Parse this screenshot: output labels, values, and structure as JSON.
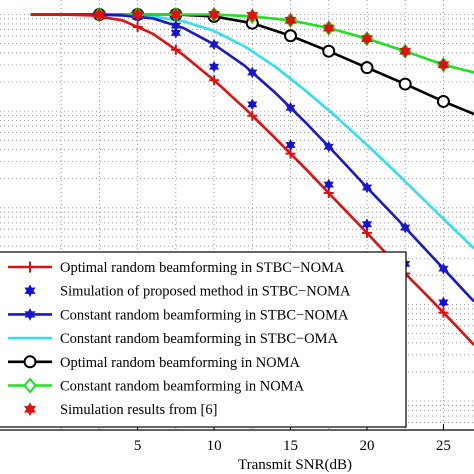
{
  "chart_data": {
    "type": "line",
    "xlabel": "Transmit SNR(dB)",
    "ylabel": "",
    "xlim": [
      -4,
      27
    ],
    "ylim": [
      -4.3,
      0.15
    ],
    "y_scale": "log",
    "grid": true,
    "x_ticks": [
      5,
      10,
      15,
      20,
      25
    ],
    "legend_position": "bottom-left",
    "series": [
      {
        "name": "Optimal random beamforming in STBC−NOMA",
        "color": "#e01010",
        "marker": "plus",
        "x": [
          -2,
          0,
          2,
          4,
          6,
          8,
          10,
          12,
          14,
          16,
          18,
          20,
          22,
          24,
          26,
          27
        ],
        "y": [
          0,
          0,
          -0.01,
          -0.06,
          -0.2,
          -0.42,
          -0.68,
          -0.97,
          -1.28,
          -1.6,
          -1.93,
          -2.26,
          -2.6,
          -2.92,
          -3.25,
          -3.42
        ]
      },
      {
        "name": "Simulation of proposed method in STBC−NOMA",
        "color": "#1010d8",
        "marker": "star",
        "x": [
          2.5,
          5,
          7.5,
          10,
          12.5,
          15,
          17.5,
          20,
          22.5,
          25
        ],
        "y": [
          0,
          -0.02,
          -0.19,
          -0.54,
          -0.93,
          -1.35,
          -1.76,
          -2.17,
          -2.58,
          -2.98
        ]
      },
      {
        "name": "Constant random beamforming in STBC−NOMA",
        "color": "#1818cc",
        "marker": "star",
        "x": [
          -2,
          0,
          2,
          4,
          6,
          8,
          10,
          12,
          14,
          16,
          18,
          20,
          22,
          24,
          26,
          27
        ],
        "y": [
          0,
          0,
          0,
          -0.01,
          -0.04,
          -0.14,
          -0.31,
          -0.53,
          -0.81,
          -1.12,
          -1.45,
          -1.79,
          -2.12,
          -2.46,
          -2.8,
          -2.97
        ]
      },
      {
        "name": "Constant random beamforming in STBC−OMA",
        "color": "#30e0f0",
        "marker": "none",
        "x": [
          -2,
          0,
          2,
          4,
          6,
          8,
          10,
          12,
          14,
          16,
          18,
          20,
          22,
          24,
          26,
          27
        ],
        "y": [
          0,
          0,
          0,
          0,
          -0.02,
          -0.07,
          -0.17,
          -0.33,
          -0.54,
          -0.79,
          -1.06,
          -1.35,
          -1.65,
          -1.96,
          -2.27,
          -2.42
        ]
      },
      {
        "name": "Optimal random beamforming in NOMA",
        "color": "#000000",
        "marker": "circle",
        "x": [
          -2,
          0,
          2.5,
          5,
          7.5,
          10,
          12.5,
          15,
          17.5,
          20,
          22.5,
          25,
          27
        ],
        "y": [
          0,
          0,
          0,
          0,
          0,
          -0.02,
          -0.09,
          -0.22,
          -0.38,
          -0.55,
          -0.72,
          -0.9,
          -1.03
        ]
      },
      {
        "name": "Constant random beamforming in NOMA",
        "color": "#20e020",
        "marker": "diamond",
        "x": [
          -2,
          0,
          2.5,
          5,
          7.5,
          10,
          12.5,
          15,
          17.5,
          20,
          22.5,
          25,
          27
        ],
        "y": [
          0,
          0,
          0,
          0,
          0,
          0,
          -0.02,
          -0.06,
          -0.14,
          -0.25,
          -0.38,
          -0.52,
          -0.6
        ]
      },
      {
        "name": "Simulation results from [6]",
        "color": "#e01010",
        "marker": "star-filled",
        "x": [
          2.5,
          5,
          7.5,
          10,
          12.5,
          15,
          17.5,
          20,
          22.5,
          25
        ],
        "y": [
          0,
          0,
          0,
          0,
          -0.01,
          -0.06,
          -0.14,
          -0.25,
          -0.38,
          -0.52
        ]
      }
    ]
  }
}
